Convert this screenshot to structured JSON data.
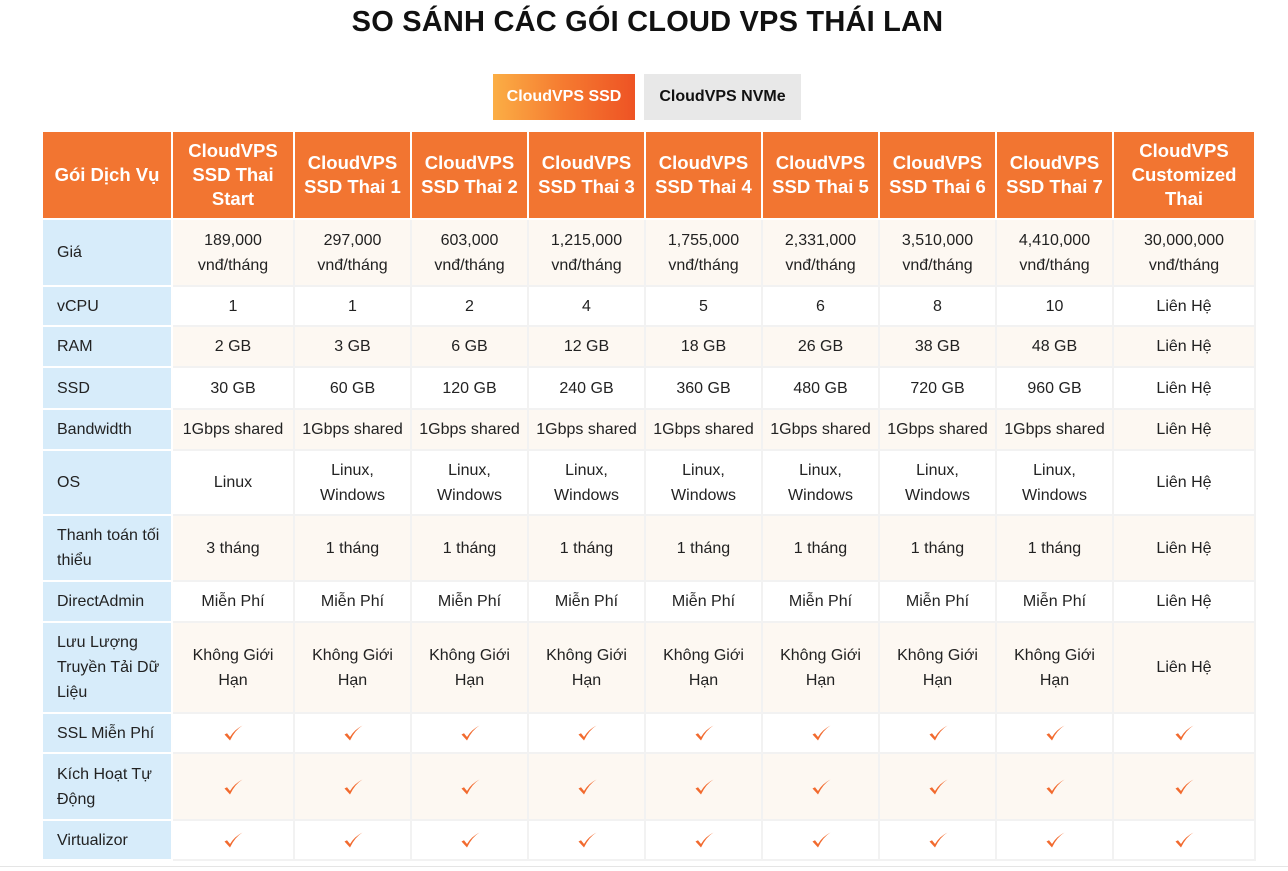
{
  "title": "SO SÁNH CÁC GÓI CLOUD VPS THÁI LAN",
  "tabs": [
    {
      "label": "CloudVPS SSD",
      "active": true
    },
    {
      "label": "CloudVPS NVMe",
      "active": false
    }
  ],
  "colors": {
    "accent": "#f27531",
    "label_bg": "#d7ecfa",
    "check": "#f26a2e"
  },
  "table": {
    "header_label": "Gói Dịch Vụ",
    "plans": [
      "CloudVPS SSD Thai Start",
      "CloudVPS SSD Thai 1",
      "CloudVPS SSD Thai 2",
      "CloudVPS SSD Thai 3",
      "CloudVPS SSD Thai 4",
      "CloudVPS SSD Thai 5",
      "CloudVPS SSD Thai 6",
      "CloudVPS SSD Thai 7",
      "CloudVPS Customized Thai"
    ],
    "rows": [
      {
        "label": "Giá",
        "values": [
          "189,000 vnđ/tháng",
          "297,000 vnđ/tháng",
          "603,000 vnđ/tháng",
          "1,215,000 vnđ/tháng",
          "1,755,000 vnđ/tháng",
          "2,331,000 vnđ/tháng",
          "3,510,000 vnđ/tháng",
          "4,410,000 vnđ/tháng",
          "30,000,000 vnđ/tháng"
        ]
      },
      {
        "label": "vCPU",
        "values": [
          "1",
          "1",
          "2",
          "4",
          "5",
          "6",
          "8",
          "10",
          "Liên Hệ"
        ]
      },
      {
        "label": "RAM",
        "values": [
          "2 GB",
          "3 GB",
          "6 GB",
          "12 GB",
          "18 GB",
          "26 GB",
          "38 GB",
          "48 GB",
          "Liên Hệ"
        ]
      },
      {
        "label": "SSD",
        "values": [
          "30 GB",
          "60 GB",
          "120 GB",
          "240 GB",
          "360 GB",
          "480 GB",
          "720 GB",
          "960 GB",
          "Liên Hệ"
        ]
      },
      {
        "label": "Bandwidth",
        "values": [
          "1Gbps shared",
          "1Gbps shared",
          "1Gbps shared",
          "1Gbps shared",
          "1Gbps shared",
          "1Gbps shared",
          "1Gbps shared",
          "1Gbps shared",
          "Liên Hệ"
        ]
      },
      {
        "label": "OS",
        "values": [
          "Linux",
          "Linux, Windows",
          "Linux, Windows",
          "Linux, Windows",
          "Linux, Windows",
          "Linux, Windows",
          "Linux, Windows",
          "Linux, Windows",
          "Liên Hệ"
        ]
      },
      {
        "label": "Thanh toán tối thiểu",
        "values": [
          "3 tháng",
          "1 tháng",
          "1 tháng",
          "1 tháng",
          "1 tháng",
          "1 tháng",
          "1 tháng",
          "1 tháng",
          "Liên Hệ"
        ]
      },
      {
        "label": "DirectAdmin",
        "values": [
          "Miễn Phí",
          "Miễn Phí",
          "Miễn Phí",
          "Miễn Phí",
          "Miễn Phí",
          "Miễn Phí",
          "Miễn Phí",
          "Miễn Phí",
          "Liên Hệ"
        ]
      },
      {
        "label": "Lưu Lượng Truyền Tải Dữ Liệu",
        "values": [
          "Không Giới Hạn",
          "Không Giới Hạn",
          "Không Giới Hạn",
          "Không Giới Hạn",
          "Không Giới Hạn",
          "Không Giới Hạn",
          "Không Giới Hạn",
          "Không Giới Hạn",
          "Liên Hệ"
        ]
      },
      {
        "label": "SSL Miễn Phí",
        "check": true
      },
      {
        "label": "Kích Hoạt Tự Động",
        "check": true
      },
      {
        "label": "Virtualizor",
        "check": true
      }
    ]
  }
}
